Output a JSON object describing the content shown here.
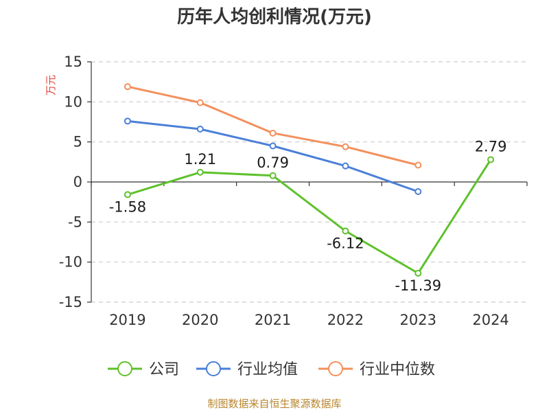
{
  "chart_data": {
    "type": "line",
    "title": "历年人均创利情况(万元)",
    "ylabel": "万元",
    "xlabel": "",
    "categories": [
      "2019",
      "2020",
      "2021",
      "2022",
      "2023",
      "2024"
    ],
    "ylim": [
      -15,
      15
    ],
    "yticks": [
      15,
      10,
      5,
      0,
      -5,
      -10,
      -15
    ],
    "ytick_labels": [
      "15",
      "10",
      "5",
      "0",
      "-5",
      "-10",
      "-15"
    ],
    "grid": true,
    "legend_position": "bottom",
    "series": [
      {
        "name": "公司",
        "color": "#5ec12b",
        "values": [
          -1.58,
          1.21,
          0.79,
          -6.12,
          -11.39,
          2.79
        ],
        "labels": [
          "-1.58",
          "1.21",
          "0.79",
          "-6.12",
          "-11.39",
          "2.79"
        ]
      },
      {
        "name": "行业均值",
        "color": "#4a7fd8",
        "values": [
          7.6,
          6.6,
          4.5,
          2.0,
          -1.2,
          null
        ]
      },
      {
        "name": "行业中位数",
        "color": "#f3905c",
        "values": [
          11.9,
          9.9,
          6.1,
          4.4,
          2.1,
          null
        ]
      }
    ]
  },
  "source": "制图数据来自恒生聚源数据库"
}
